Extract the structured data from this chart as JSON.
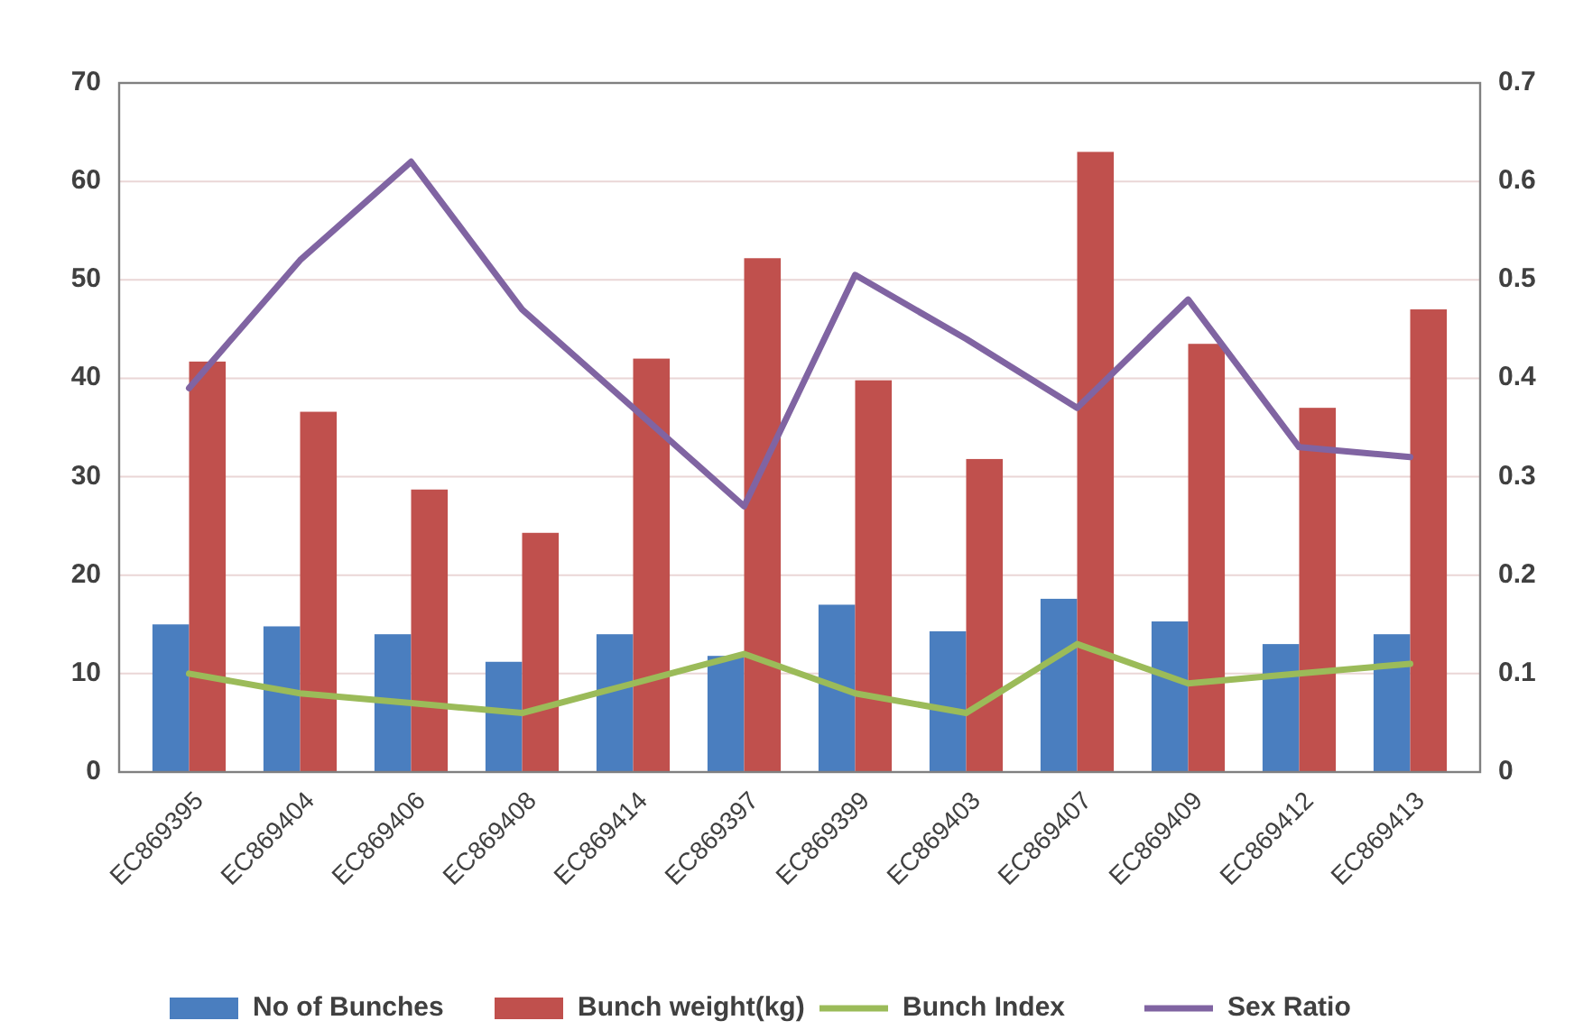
{
  "chart_data": {
    "type": "bar",
    "categories": [
      "EC869395",
      "EC869404",
      "EC869406",
      "EC869408",
      "EC869414",
      "EC869397",
      "EC869399",
      "EC869403",
      "EC869407",
      "EC869409",
      "EC869412",
      "EC869413"
    ],
    "series": [
      {
        "name": "No of Bunches",
        "color": "#4a7ebf",
        "values": [
          15,
          14.8,
          14,
          11.2,
          14,
          11.8,
          17,
          14.3,
          17.6,
          15.3,
          13,
          14
        ]
      },
      {
        "name": "Bunch weight(kg)",
        "color": "#c0504d",
        "values": [
          41.7,
          36.6,
          28.7,
          24.3,
          42,
          52.2,
          39.8,
          31.8,
          63,
          43.5,
          37,
          47
        ]
      },
      {
        "name": "Bunch Index",
        "type": "line",
        "axis": "y2",
        "color": "#9bbb59",
        "values": [
          0.1,
          0.08,
          0.07,
          0.06,
          0.09,
          0.12,
          0.08,
          0.06,
          0.13,
          0.09,
          0.1,
          0.11
        ]
      },
      {
        "name": "Sex Ratio",
        "type": "line",
        "axis": "y2",
        "color": "#8064a2",
        "values": [
          0.39,
          0.52,
          0.62,
          0.47,
          0.37,
          0.27,
          0.505,
          0.44,
          0.37,
          0.48,
          0.33,
          0.32
        ]
      }
    ],
    "ylim": [
      0,
      70
    ],
    "yticks": [
      0,
      10,
      20,
      30,
      40,
      50,
      60,
      70
    ],
    "y2lim": [
      0,
      0.7
    ],
    "y2ticks": [
      0,
      0.1,
      0.2,
      0.3,
      0.4,
      0.5,
      0.6,
      0.7
    ],
    "grid": "y",
    "legend": "bottom",
    "marker": "none",
    "line_style": "solid"
  }
}
